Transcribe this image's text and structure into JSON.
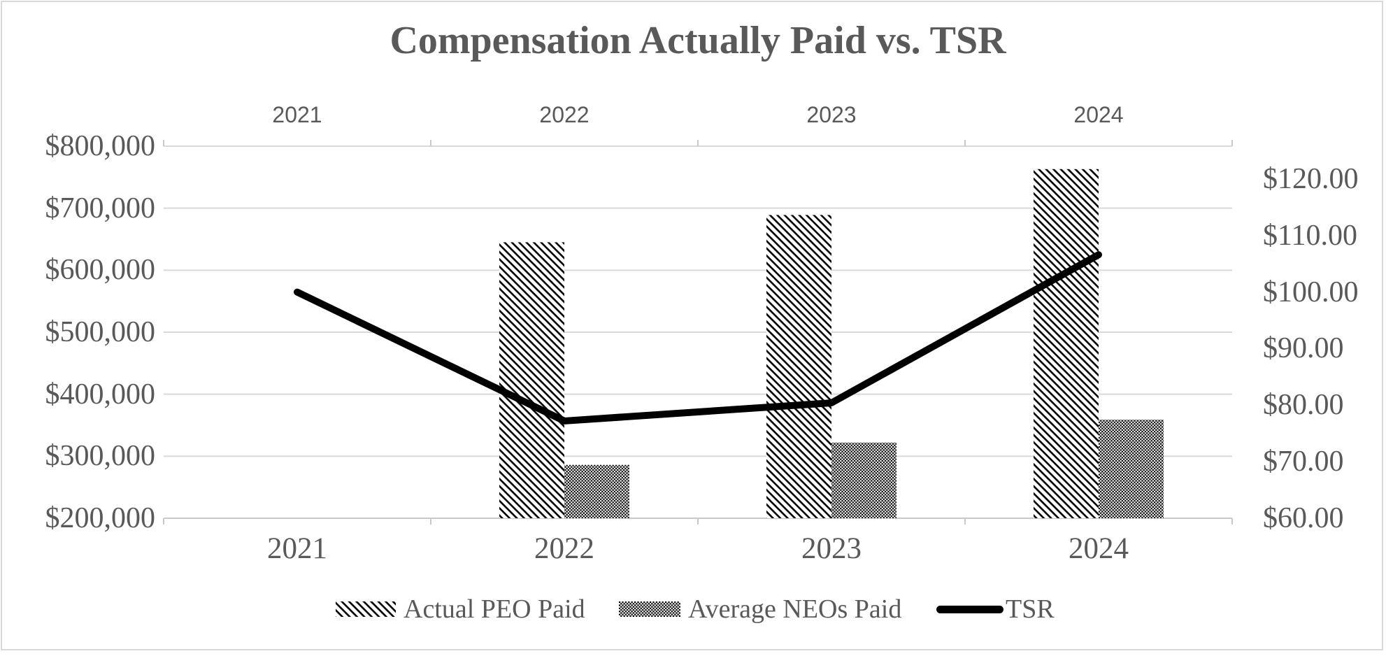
{
  "figure": {
    "title": "Compensation Actually Paid vs. TSR",
    "background": "#ffffff",
    "border_color": "#d9d9d9"
  },
  "colors": {
    "text": "#595959",
    "gridline": "#d9d9d9",
    "axis_line": "#c9c9c9",
    "tick": "#c9c9c9",
    "bar_pattern_ink": "#000000",
    "bar_pattern_bg": "#ffffff",
    "tsr_line": "#000000"
  },
  "legend": {
    "position": "bottom",
    "items": [
      {
        "label": "Actual PEO Paid",
        "swatch": "diagonal-hatch"
      },
      {
        "label": "Average NEOs Paid",
        "swatch": "dot-grid"
      },
      {
        "label": "TSR",
        "swatch": "thick-line"
      }
    ]
  },
  "chart_data": {
    "type": "combo-bar-line",
    "title": "Compensation Actually Paid vs. TSR",
    "categories": [
      "2021",
      "2022",
      "2023",
      "2024"
    ],
    "series": [
      {
        "name": "Actual PEO Paid",
        "type": "bar",
        "axis": "left",
        "pattern": "diagonal-hatch",
        "values": [
          null,
          645000,
          689000,
          763000
        ]
      },
      {
        "name": "Average NEOs Paid",
        "type": "bar",
        "axis": "left",
        "pattern": "dot-grid",
        "values": [
          null,
          286000,
          322000,
          359000
        ]
      },
      {
        "name": "TSR",
        "type": "line",
        "axis": "right",
        "values": [
          100.0,
          77.2,
          80.4,
          106.6
        ]
      }
    ],
    "left_axis": {
      "min": 200000,
      "max": 800000,
      "step": 100000,
      "tick_labels": [
        "$800,000",
        "$700,000",
        "$600,000",
        "$500,000",
        "$400,000",
        "$300,000",
        "$200,000"
      ]
    },
    "right_axis": {
      "min": 60,
      "label_max": 120,
      "step": 10,
      "scale_max": 125.8,
      "tick_labels": [
        "$120.00",
        "$110.00",
        "$100.00",
        "$90.00",
        "$80.00",
        "$70.00",
        "$60.00"
      ]
    },
    "top_axis_labels": [
      "2021",
      "2022",
      "2023",
      "2024"
    ],
    "bottom_axis_labels": [
      "2021",
      "2022",
      "2023",
      "2024"
    ],
    "gridlines": "horizontal",
    "legend_position": "bottom"
  }
}
